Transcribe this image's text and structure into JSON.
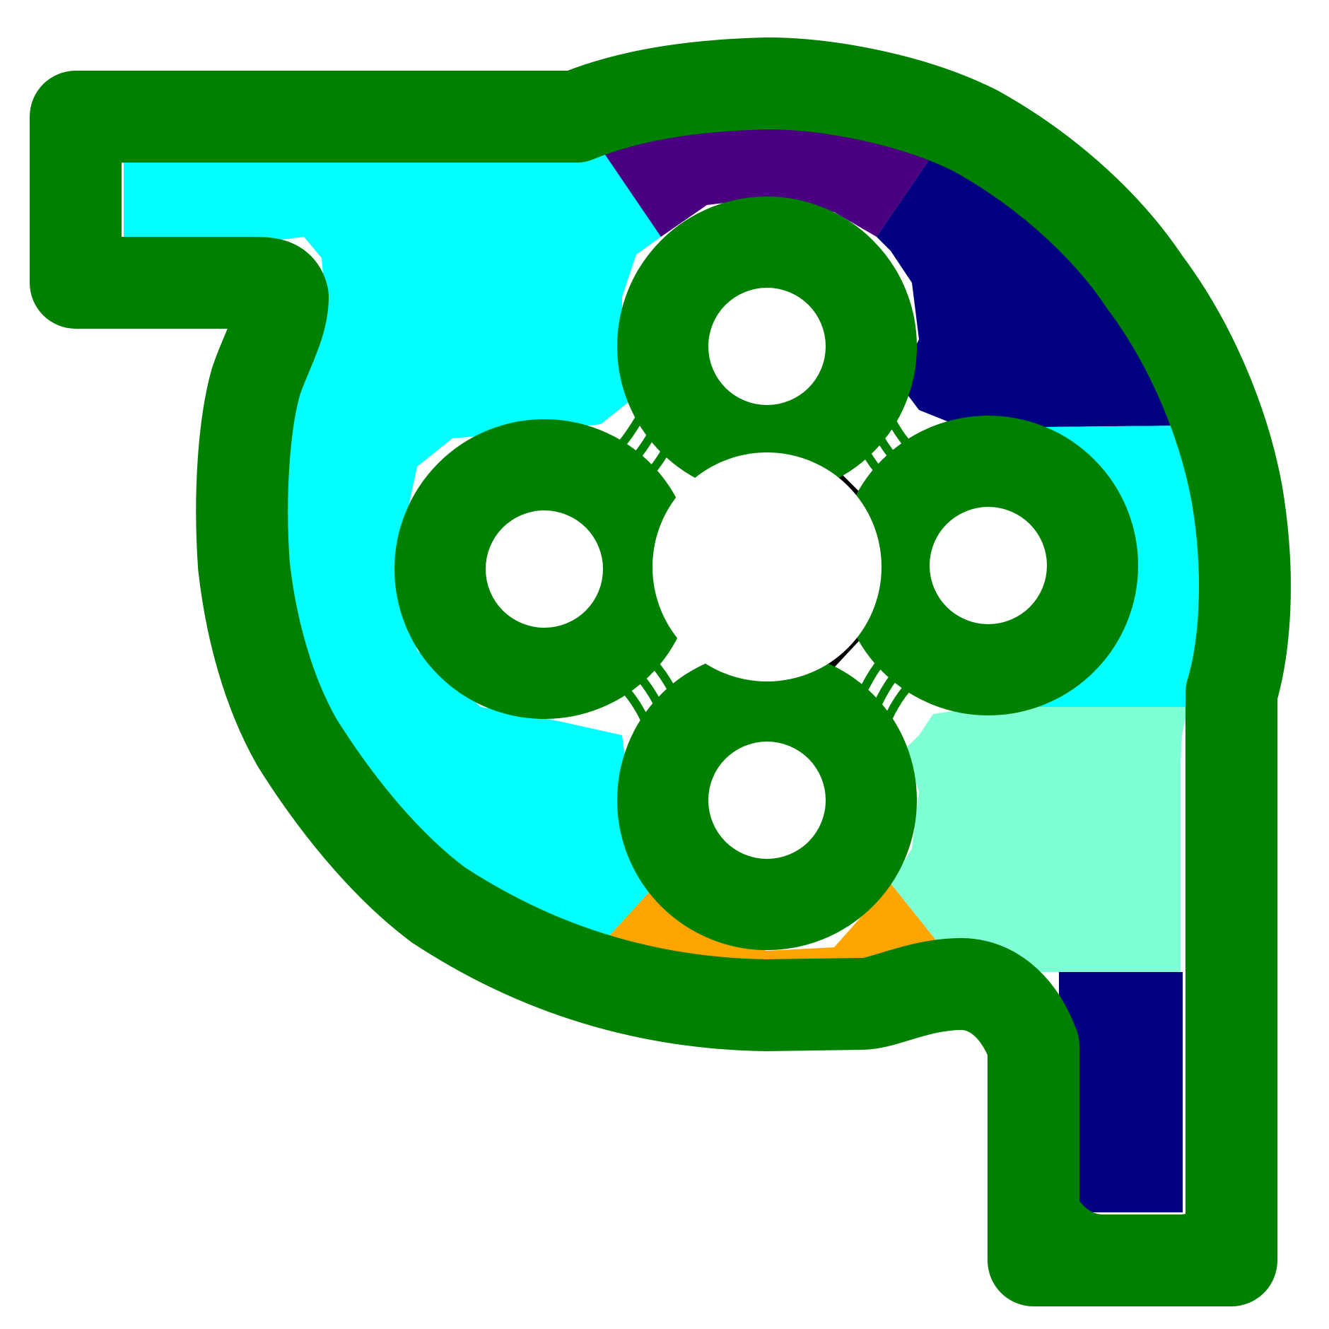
{
  "diagram": {
    "colors": {
      "background": "#ffffff",
      "outline": "#008000",
      "cyan": "#00ffff",
      "indigo": "#4b0082",
      "navy": "#000080",
      "aquamarine": "#7fffd4",
      "orange": "#ffa500",
      "black": "#000000",
      "hole": "#ffffff"
    },
    "regions": [
      {
        "name": "inlet-region",
        "color": "cyan"
      },
      {
        "name": "top-region",
        "color": "indigo"
      },
      {
        "name": "upper-right-region",
        "color": "navy"
      },
      {
        "name": "right-region",
        "color": "cyan"
      },
      {
        "name": "lower-right-region",
        "color": "aquamarine"
      },
      {
        "name": "bottom-region",
        "color": "orange"
      },
      {
        "name": "outlet-region",
        "color": "navy"
      }
    ],
    "rotor": {
      "lobes": 4,
      "holes": 5
    }
  }
}
